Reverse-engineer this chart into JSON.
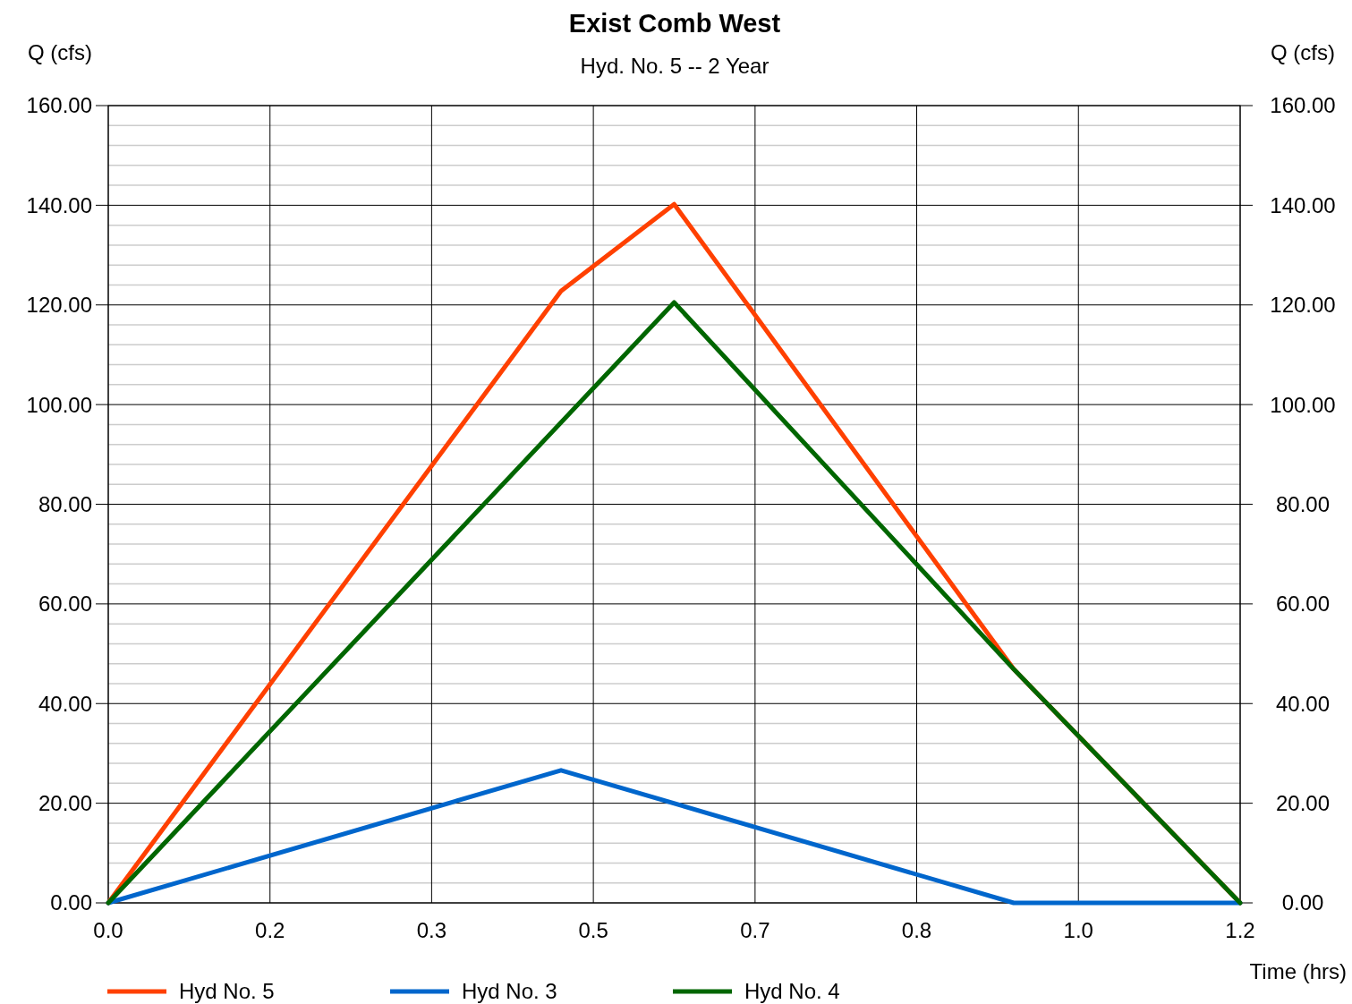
{
  "chart_data": {
    "type": "line",
    "title": "Exist Comb West",
    "subtitle": "Hyd. No. 5 -- 2 Year",
    "ylabel": "Q (cfs)",
    "y2label": "Q (cfs)",
    "xlabel": "Time (hrs)",
    "xlim": [
      0,
      1.1667
    ],
    "xticks": [
      {
        "value": 0,
        "label": "0.0"
      },
      {
        "value": 0.1667,
        "label": "0.2"
      },
      {
        "value": 0.3333,
        "label": "0.3"
      },
      {
        "value": 0.5,
        "label": "0.5"
      },
      {
        "value": 0.6667,
        "label": "0.7"
      },
      {
        "value": 0.8333,
        "label": "0.8"
      },
      {
        "value": 1.0,
        "label": "1.0"
      },
      {
        "value": 1.1667,
        "label": "1.2"
      }
    ],
    "ylim": [
      0,
      160
    ],
    "yticks": [
      {
        "value": 0,
        "label": "0.00"
      },
      {
        "value": 4,
        "label": null
      },
      {
        "value": 8,
        "label": null
      },
      {
        "value": 12,
        "label": null
      },
      {
        "value": 16,
        "label": null
      },
      {
        "value": 20,
        "label": "20.00"
      },
      {
        "value": 24,
        "label": null
      },
      {
        "value": 28,
        "label": null
      },
      {
        "value": 32,
        "label": null
      },
      {
        "value": 36,
        "label": null
      },
      {
        "value": 40,
        "label": "40.00"
      },
      {
        "value": 44,
        "label": null
      },
      {
        "value": 48,
        "label": null
      },
      {
        "value": 52,
        "label": null
      },
      {
        "value": 56,
        "label": null
      },
      {
        "value": 60,
        "label": "60.00"
      },
      {
        "value": 64,
        "label": null
      },
      {
        "value": 68,
        "label": null
      },
      {
        "value": 72,
        "label": null
      },
      {
        "value": 76,
        "label": null
      },
      {
        "value": 80,
        "label": "80.00"
      },
      {
        "value": 84,
        "label": null
      },
      {
        "value": 88,
        "label": null
      },
      {
        "value": 92,
        "label": null
      },
      {
        "value": 96,
        "label": null
      },
      {
        "value": 100,
        "label": "100.00"
      },
      {
        "value": 104,
        "label": null
      },
      {
        "value": 108,
        "label": null
      },
      {
        "value": 112,
        "label": null
      },
      {
        "value": 116,
        "label": null
      },
      {
        "value": 120,
        "label": "120.00"
      },
      {
        "value": 124,
        "label": null
      },
      {
        "value": 128,
        "label": null
      },
      {
        "value": 132,
        "label": null
      },
      {
        "value": 136,
        "label": null
      },
      {
        "value": 140,
        "label": "140.00"
      },
      {
        "value": 144,
        "label": null
      },
      {
        "value": 148,
        "label": null
      },
      {
        "value": 152,
        "label": null
      },
      {
        "value": 156,
        "label": null
      },
      {
        "value": 160,
        "label": "160.00"
      }
    ],
    "y2lim": [
      0,
      160
    ],
    "y2ticks": [
      {
        "value": 0,
        "label": "0.00"
      },
      {
        "value": 20,
        "label": "20.00"
      },
      {
        "value": 40,
        "label": "40.00"
      },
      {
        "value": 60,
        "label": "60.00"
      },
      {
        "value": 80,
        "label": "80.00"
      },
      {
        "value": 100,
        "label": "100.00"
      },
      {
        "value": 120,
        "label": "120.00"
      },
      {
        "value": 140,
        "label": "140.00"
      },
      {
        "value": 160,
        "label": "160.00"
      }
    ],
    "grid": true,
    "legend": "bottom",
    "line_style": "solid",
    "series": [
      {
        "name": "Hyd No. 5",
        "color": "#ff4000",
        "x": [
          0,
          0.4667,
          0.5833,
          0.9333,
          1.1667
        ],
        "values": [
          0,
          122.8,
          140.2,
          46.9,
          0
        ]
      },
      {
        "name": "Hyd No. 3",
        "color": "#0066cc",
        "x": [
          0,
          0.4667,
          0.9333,
          1.1667
        ],
        "values": [
          0,
          26.6,
          0,
          0
        ]
      },
      {
        "name": "Hyd No. 4",
        "color": "#006600",
        "x": [
          0,
          0.5833,
          0.9333,
          1.1667
        ],
        "values": [
          0,
          120.5,
          46.9,
          0
        ]
      }
    ]
  }
}
